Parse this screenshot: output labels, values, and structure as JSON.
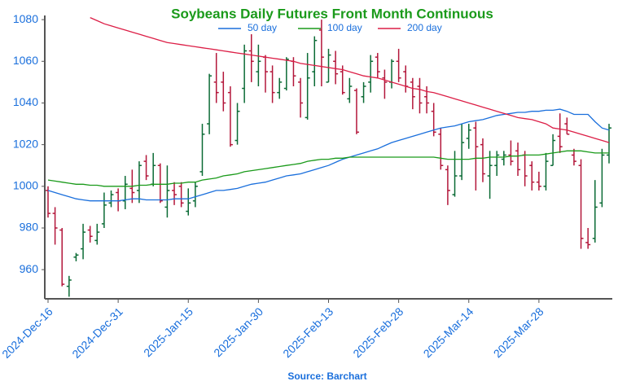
{
  "chart_data": {
    "type": "ohlc",
    "title": "Soybeans Daily Futures Front Month Continuous",
    "source": "Source: Barchart",
    "categories": [
      "2024-Dec-16",
      null,
      null,
      null,
      null,
      null,
      null,
      null,
      null,
      null,
      "2024-Dec-31",
      null,
      null,
      null,
      null,
      null,
      null,
      null,
      null,
      null,
      "2025-Jan-15",
      null,
      null,
      null,
      null,
      null,
      null,
      null,
      null,
      null,
      "2025-Jan-30",
      null,
      null,
      null,
      null,
      null,
      null,
      null,
      null,
      null,
      "2025-Feb-13",
      null,
      null,
      null,
      null,
      null,
      null,
      null,
      null,
      null,
      "2025-Feb-28",
      null,
      null,
      null,
      null,
      null,
      null,
      null,
      null,
      null,
      "2025-Mar-14",
      null,
      null,
      null,
      null,
      null,
      null,
      null,
      null,
      null,
      "2025-Mar-28",
      null,
      null,
      null,
      null,
      null,
      null,
      null,
      null,
      null,
      null
    ],
    "up_color": "#0b6b35",
    "down_color": "#b3163a",
    "open": [
      998,
      987,
      979,
      952,
      966,
      970,
      979,
      974,
      982,
      992,
      997,
      993,
      999,
      998,
      1012,
      1001,
      1010,
      990,
      998,
      1000,
      988,
      993,
      1007,
      1030,
      1050,
      1050,
      1045,
      1022,
      1047,
      1065,
      1055,
      1062,
      1055,
      1045,
      1047,
      1060,
      1050,
      1033,
      1055,
      1075,
      1050,
      1060,
      1055,
      1042,
      1046,
      1043,
      1050,
      1062,
      1052,
      1050,
      1060,
      1055,
      1050,
      1048,
      1043,
      1036,
      1025,
      1008,
      996,
      1005,
      1023,
      1028,
      1020,
      1005,
      1010,
      1013,
      1015,
      1017,
      1015,
      1010,
      1002,
      1000,
      1010,
      1024,
      1030,
      1015,
      1010,
      973,
      975,
      992,
      1015
    ],
    "high": [
      1000,
      990,
      980,
      957,
      968,
      982,
      981,
      982,
      997,
      998,
      999,
      1005,
      1008,
      1012,
      1015,
      1016,
      1011,
      1010,
      1002,
      1002,
      999,
      1002,
      1030,
      1054,
      1064,
      1055,
      1048,
      1040,
      1068,
      1073,
      1068,
      1063,
      1058,
      1052,
      1062,
      1062,
      1052,
      1064,
      1072,
      1080,
      1066,
      1065,
      1058,
      1052,
      1047,
      1050,
      1063,
      1064,
      1056,
      1061,
      1066,
      1058,
      1052,
      1052,
      1048,
      1040,
      1028,
      1010,
      1017,
      1030,
      1030,
      1031,
      1023,
      1017,
      1017,
      1017,
      1022,
      1021,
      1017,
      1012,
      1007,
      1016,
      1025,
      1035,
      1033,
      1018,
      1013,
      980,
      1003,
      1018,
      1030
    ],
    "low": [
      985,
      972,
      952,
      947,
      964,
      965,
      973,
      972,
      980,
      990,
      988,
      989,
      992,
      992,
      1003,
      1000,
      992,
      985,
      991,
      990,
      986,
      990,
      1005,
      1025,
      1040,
      1036,
      1019,
      1020,
      1040,
      1050,
      1048,
      1045,
      1040,
      1042,
      1046,
      1048,
      1033,
      1032,
      1048,
      1048,
      1050,
      1049,
      1044,
      1040,
      1025,
      1040,
      1045,
      1052,
      1042,
      1047,
      1050,
      1045,
      1037,
      1035,
      1035,
      1024,
      1008,
      991,
      995,
      1003,
      1018,
      998,
      1002,
      994,
      1005,
      1010,
      1010,
      1005,
      1000,
      998,
      998,
      998,
      1010,
      1016,
      1025,
      1010,
      970,
      970,
      973,
      990,
      1011
    ],
    "close": [
      987,
      980,
      953,
      955,
      967,
      978,
      976,
      978,
      991,
      996,
      993,
      1001,
      997,
      1010,
      1005,
      1010,
      993,
      998,
      996,
      992,
      992,
      1000,
      1025,
      1053,
      1045,
      1040,
      1020,
      1036,
      1065,
      1060,
      1060,
      1055,
      1045,
      1050,
      1061,
      1053,
      1040,
      1052,
      1070,
      1062,
      1063,
      1054,
      1045,
      1048,
      1026,
      1048,
      1060,
      1055,
      1050,
      1060,
      1052,
      1048,
      1043,
      1040,
      1040,
      1026,
      1010,
      998,
      1005,
      1021,
      1027,
      1019,
      1006,
      1010,
      1015,
      1015,
      1012,
      1008,
      1005,
      1002,
      1000,
      1012,
      1022,
      1019,
      1025,
      1012,
      975,
      972,
      990,
      1015,
      1028
    ],
    "series": [
      {
        "name": "50 day",
        "color": "#1a6fdc",
        "values": [
          998,
          997,
          996,
          995,
          994,
          993.5,
          993,
          993,
          993,
          993,
          993,
          993.5,
          994,
          994,
          993.5,
          993.5,
          993.5,
          993.5,
          994,
          994,
          994,
          995,
          996,
          997,
          998,
          998,
          998.5,
          999,
          1000,
          1001,
          1001.5,
          1002,
          1003,
          1004,
          1005,
          1005.5,
          1006,
          1007,
          1008,
          1009,
          1010,
          1011.5,
          1013,
          1014,
          1015,
          1016,
          1017,
          1018,
          1019.5,
          1021,
          1022,
          1023,
          1024,
          1025,
          1026,
          1027,
          1028,
          1028.5,
          1029,
          1030,
          1031,
          1031.5,
          1032,
          1033,
          1034,
          1034.5,
          1035,
          1035.5,
          1035.5,
          1036,
          1036,
          1036.5,
          1036.5,
          1037,
          1036,
          1034.5,
          1034.5,
          1034.5,
          1031,
          1028,
          1027
        ]
      },
      {
        "name": "100 day",
        "color": "#1a9a1a",
        "values": [
          1003,
          1002.5,
          1002,
          1001.5,
          1001,
          1001,
          1000.5,
          1000.5,
          1000,
          1000,
          1000,
          1000,
          1000,
          1000.5,
          1000.5,
          1001,
          1001,
          1001,
          1001.5,
          1001.5,
          1002,
          1002,
          1003,
          1003.5,
          1004,
          1005,
          1005.5,
          1006,
          1007,
          1007.5,
          1008,
          1008.5,
          1009,
          1009.5,
          1010,
          1010.5,
          1011,
          1012,
          1012.5,
          1013,
          1013,
          1013.5,
          1013.5,
          1014,
          1014,
          1014,
          1014,
          1014,
          1014,
          1014,
          1014,
          1014,
          1014,
          1014,
          1014,
          1014,
          1013.5,
          1013,
          1013,
          1013,
          1013,
          1013.5,
          1013.5,
          1014,
          1014,
          1014,
          1014.5,
          1014.5,
          1015,
          1015,
          1015,
          1015.5,
          1016,
          1016.5,
          1017,
          1017,
          1017,
          1016.5,
          1016,
          1016,
          1016
        ]
      },
      {
        "name": "200 day",
        "color": "#dc1e46",
        "values": [
          null,
          null,
          null,
          null,
          null,
          null,
          1081,
          1079.5,
          1078,
          1077,
          1076,
          1075,
          1074,
          1073,
          1072,
          1071,
          1070,
          1069,
          1068.5,
          1068,
          1067.5,
          1067,
          1066.5,
          1066,
          1065.5,
          1065,
          1064.5,
          1064,
          1063.5,
          1063,
          1062.5,
          1062,
          1061.5,
          1061,
          1060.5,
          1060,
          1059,
          1058.5,
          1058,
          1057.5,
          1057,
          1056.5,
          1056,
          1055,
          1054,
          1053,
          1052.5,
          1052,
          1051,
          1050,
          1049,
          1048,
          1047,
          1046.5,
          1045.5,
          1045,
          1044,
          1043,
          1042,
          1041,
          1040,
          1039,
          1038,
          1037,
          1036,
          1035,
          1034,
          1033,
          1032.5,
          1032,
          1031,
          1030,
          1028,
          1027.5,
          1027,
          1026,
          1025,
          1024,
          1023,
          1022,
          1021
        ]
      }
    ],
    "ylim": [
      946,
      1082
    ],
    "yticks": [
      960,
      980,
      1000,
      1020,
      1040,
      1060,
      1080
    ]
  }
}
